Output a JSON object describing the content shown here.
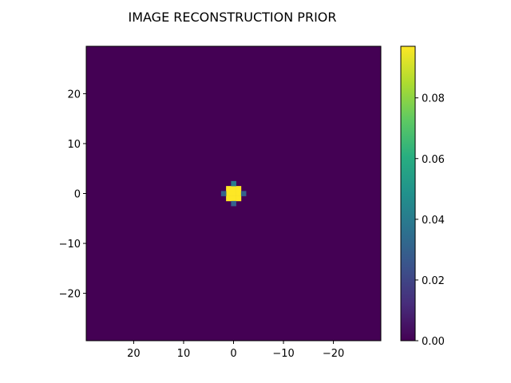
{
  "chart_data": {
    "type": "heatmap",
    "title": "IMAGE RECONSTRUCTION PRIOR",
    "xlabel": "",
    "ylabel": "",
    "xlim": [
      29.5,
      -29.5
    ],
    "ylim": [
      -29.5,
      29.5
    ],
    "x_ticks": [
      20,
      10,
      0,
      -10,
      -20
    ],
    "x_tick_labels": [
      "20",
      "10",
      "0",
      "−10",
      "−20"
    ],
    "y_ticks": [
      20,
      10,
      0,
      -10,
      -20
    ],
    "y_tick_labels": [
      "20",
      "10",
      "0",
      "−10",
      "−20"
    ],
    "grid": false,
    "colormap": "viridis",
    "background_value": 0.0,
    "pixel_size": 1,
    "cells": [
      {
        "x": 0,
        "y": 1,
        "value": 0.097
      },
      {
        "x": 1,
        "y": 1,
        "value": 0.097
      },
      {
        "x": 0,
        "y": 0,
        "value": 0.097
      },
      {
        "x": 1,
        "y": 0,
        "value": 0.097
      },
      {
        "x": -1,
        "y": 1,
        "value": 0.097
      },
      {
        "x": -1,
        "y": 0,
        "value": 0.097
      },
      {
        "x": 0,
        "y": -1,
        "value": 0.097
      },
      {
        "x": 1,
        "y": -1,
        "value": 0.097
      },
      {
        "x": -1,
        "y": -1,
        "value": 0.097
      },
      {
        "x": 0,
        "y": 2,
        "value": 0.04
      },
      {
        "x": 0,
        "y": -2,
        "value": 0.03
      },
      {
        "x": 2,
        "y": 0,
        "value": 0.03
      },
      {
        "x": -2,
        "y": 0,
        "value": 0.03
      }
    ],
    "colorbar": {
      "min": 0.0,
      "max": 0.097,
      "ticks": [
        0.0,
        0.02,
        0.04,
        0.06,
        0.08
      ],
      "tick_labels": [
        "0.00",
        "0.02",
        "0.04",
        "0.06",
        "0.08"
      ]
    }
  }
}
